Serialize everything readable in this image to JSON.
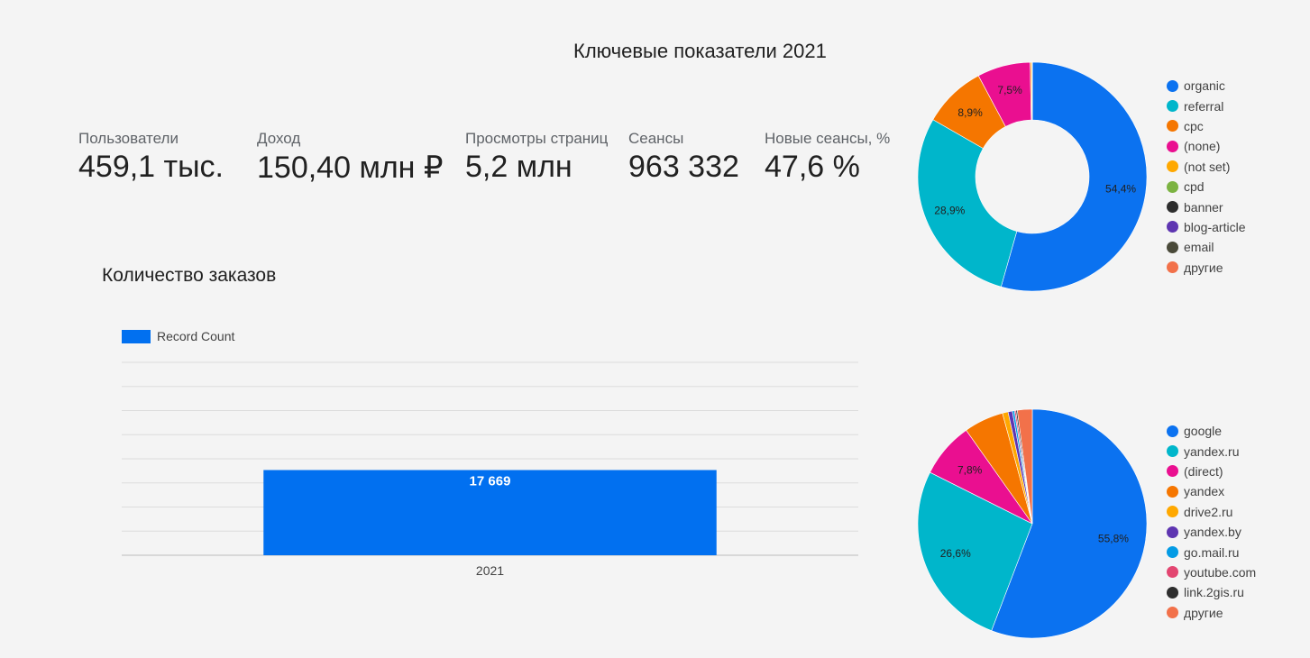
{
  "page": {
    "title": "Ключевые показатели 2021"
  },
  "kpis": [
    {
      "label": "Пользователи",
      "value": "459,1 тыс."
    },
    {
      "label": "Доход",
      "value": "150,40 млн ₽"
    },
    {
      "label": "Просмотры страниц",
      "value": "5,2 млн"
    },
    {
      "label": "Сеансы",
      "value": "963 332"
    },
    {
      "label": "Новые сеансы, %",
      "value": "47,6 %"
    }
  ],
  "chart_data": [
    {
      "type": "bar",
      "title": "Количество заказов",
      "categories": [
        "2021"
      ],
      "series": [
        {
          "name": "Record Count",
          "color": "#0170f0",
          "values": [
            17669
          ],
          "value_labels": [
            "17 669"
          ]
        }
      ],
      "legend": "top-left",
      "grid": true,
      "ylim": [
        0,
        40000
      ]
    },
    {
      "type": "pie",
      "style": "donut",
      "slices": [
        {
          "name": "organic",
          "value": 54.4,
          "label": "54,4%",
          "color": "#0b72f0"
        },
        {
          "name": "referral",
          "value": 28.9,
          "label": "28,9%",
          "color": "#00b6cb"
        },
        {
          "name": "cpc",
          "value": 8.9,
          "label": "8,9%",
          "color": "#f57600"
        },
        {
          "name": "(none)",
          "value": 7.5,
          "label": "7,5%",
          "color": "#ea0f90"
        },
        {
          "name": "(not set)",
          "value": 0.2,
          "label": "",
          "color": "#ffa800"
        },
        {
          "name": "cpd",
          "value": 0.04,
          "label": "",
          "color": "#7cb342"
        },
        {
          "name": "banner",
          "value": 0.02,
          "label": "",
          "color": "#2e2e2e"
        },
        {
          "name": "blog-article",
          "value": 0.02,
          "label": "",
          "color": "#5e35b1"
        },
        {
          "name": "email",
          "value": 0.01,
          "label": "",
          "color": "#4a4a3a"
        },
        {
          "name": "другие",
          "value": 0.01,
          "label": "",
          "color": "#f2714a"
        }
      ],
      "legend": "right"
    },
    {
      "type": "pie",
      "slices": [
        {
          "name": "google",
          "value": 55.8,
          "label": "55,8%",
          "color": "#0b72f0"
        },
        {
          "name": "yandex.ru",
          "value": 26.6,
          "label": "26,6%",
          "color": "#00b6cb"
        },
        {
          "name": "(direct)",
          "value": 7.8,
          "label": "7,8%",
          "color": "#ea0f90"
        },
        {
          "name": "yandex",
          "value": 5.6,
          "label": "",
          "color": "#f57600"
        },
        {
          "name": "drive2.ru",
          "value": 0.8,
          "label": "",
          "color": "#ffa800"
        },
        {
          "name": "yandex.by",
          "value": 0.6,
          "label": "",
          "color": "#5e35b1"
        },
        {
          "name": "go.mail.ru",
          "value": 0.3,
          "label": "",
          "color": "#039be5"
        },
        {
          "name": "youtube.com",
          "value": 0.2,
          "label": "",
          "color": "#e34671"
        },
        {
          "name": "link.2gis.ru",
          "value": 0.2,
          "label": "",
          "color": "#2e2e2e"
        },
        {
          "name": "другие",
          "value": 2.1,
          "label": "",
          "color": "#f2714a"
        }
      ],
      "legend": "right"
    }
  ]
}
